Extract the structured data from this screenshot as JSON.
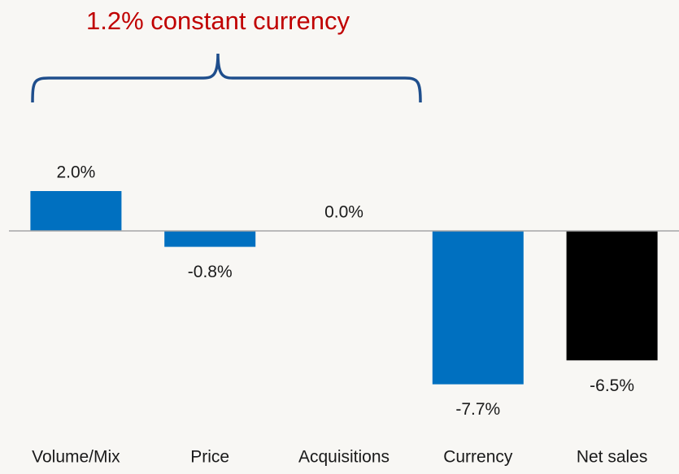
{
  "chart_data": {
    "type": "bar",
    "annotation": "1.2% constant currency",
    "categories": [
      "Volume/Mix",
      "Price",
      "Acquisitions",
      "Currency",
      "Net sales"
    ],
    "values": [
      2.0,
      -0.8,
      0.0,
      -7.7,
      -6.5
    ],
    "value_labels": [
      "2.0%",
      "-0.8%",
      "0.0%",
      "-7.7%",
      "-6.5%"
    ],
    "colors": [
      "#0070c0",
      "#0070c0",
      "#0070c0",
      "#0070c0",
      "#000000"
    ],
    "ylim": [
      -10,
      4
    ]
  }
}
